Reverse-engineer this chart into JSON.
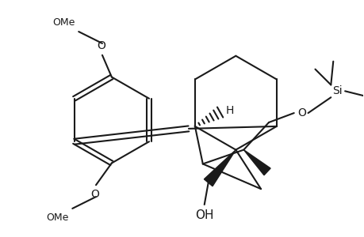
{
  "bg": "#ffffff",
  "lc": "#1a1a1a",
  "lw": 1.5,
  "fs": 10,
  "fig_w": 4.6,
  "fig_h": 3.0,
  "dpi": 100,
  "xlim": [
    0,
    4.6
  ],
  "ylim": [
    0,
    3.0
  ]
}
